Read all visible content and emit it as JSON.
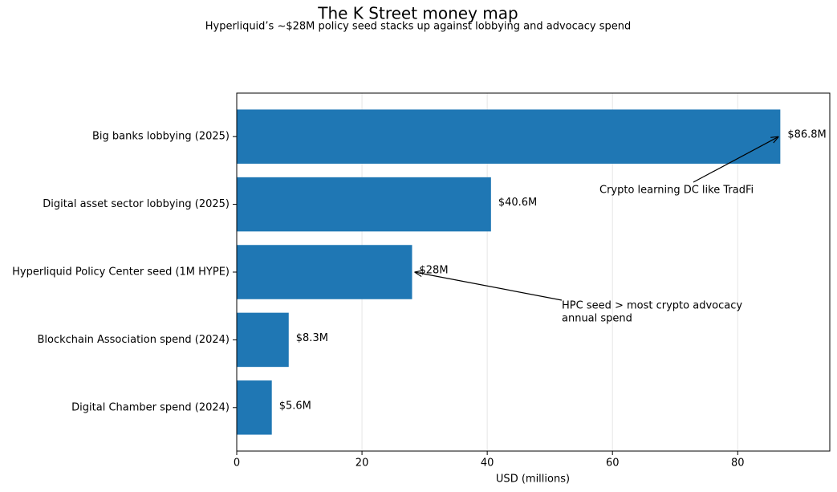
{
  "chart_data": {
    "type": "barh",
    "title": "The K Street money map",
    "subtitle": "Hyperliquid’s ~$28M policy seed stacks up against lobbying and advocacy spend",
    "x_label": "USD (millions)",
    "categories": [
      "Big banks lobbying (2025)",
      "Digital asset sector lobbying (2025)",
      "Hyperliquid Policy Center seed (1M HYPE)",
      "Blockchain Association spend (2024)",
      "Digital Chamber spend (2024)"
    ],
    "values": [
      86.8,
      40.6,
      28,
      8.3,
      5.6
    ],
    "value_labels": [
      "$86.8M",
      "$40.6M",
      "$28M",
      "$8.3M",
      "$5.6M"
    ],
    "color": "#1f77b4",
    "xlim": [
      0,
      94.7
    ],
    "xticks": [
      0,
      20,
      40,
      60,
      80
    ],
    "grid": true,
    "annotations": [
      {
        "text": [
          "Crypto learning DC like TradFi"
        ]
      },
      {
        "text": [
          "HPC seed > most crypto advocacy",
          "annual spend"
        ]
      }
    ]
  }
}
